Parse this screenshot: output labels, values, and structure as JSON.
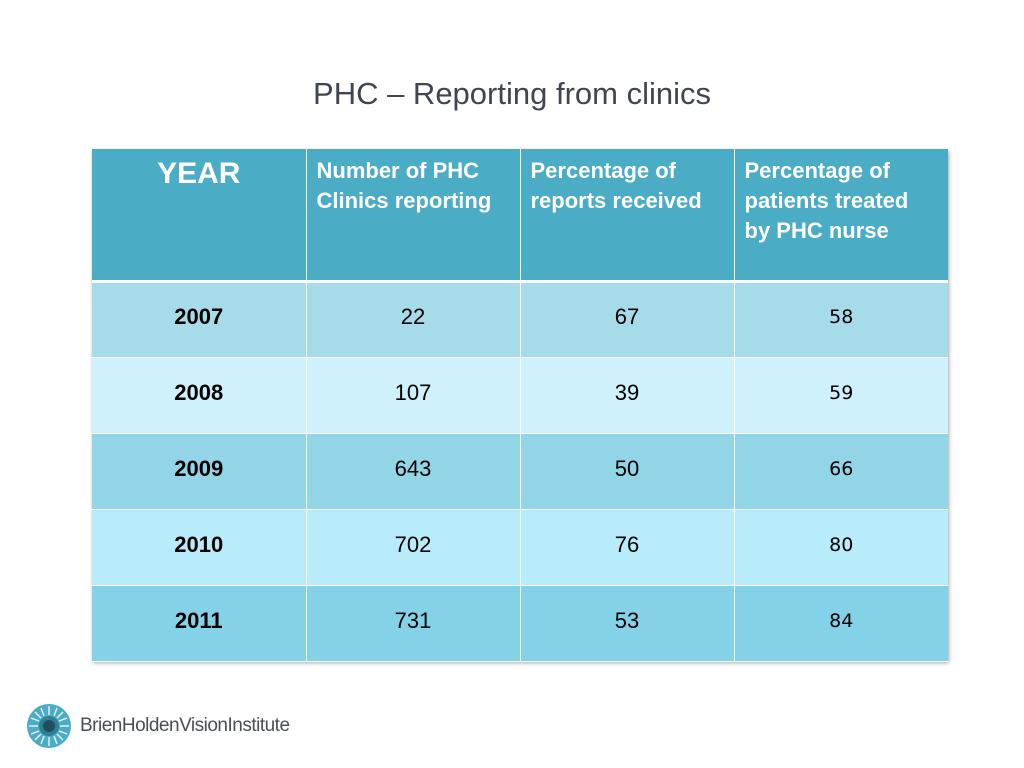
{
  "slide": {
    "title": "PHC – Reporting from clinics"
  },
  "table": {
    "headers": [
      "YEAR",
      "Number of PHC Clinics reporting",
      "Percentage of reports received",
      "Percentage of patients treated by PHC nurse"
    ],
    "rows": [
      {
        "year": "2007",
        "clinics": "22",
        "reports_pct": "67",
        "nurse_pct": "58"
      },
      {
        "year": "2008",
        "clinics": "107",
        "reports_pct": "39",
        "nurse_pct": "59"
      },
      {
        "year": "2009",
        "clinics": "643",
        "reports_pct": "50",
        "nurse_pct": "66"
      },
      {
        "year": "2010",
        "clinics": "702",
        "reports_pct": "76",
        "nurse_pct": "80"
      },
      {
        "year": "2011",
        "clinics": "731",
        "reports_pct": "53",
        "nurse_pct": "84"
      }
    ]
  },
  "logo": {
    "text_part1": "BrienHolden",
    "text_part2": "VisionInstitute",
    "icon": "eye-logo-icon",
    "color": "#4bacc6"
  }
}
